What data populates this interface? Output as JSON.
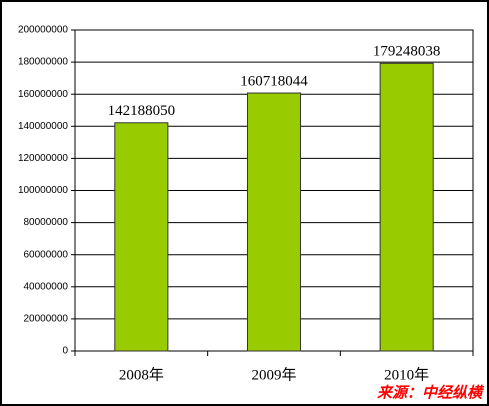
{
  "chart_data": {
    "type": "bar",
    "categories": [
      "2008年",
      "2009年",
      "2010年"
    ],
    "values": [
      142188050,
      160718044,
      179248038
    ],
    "color": "#99cc00",
    "ylim": [
      0,
      200000000
    ],
    "yticks": [
      0,
      20000000,
      40000000,
      60000000,
      80000000,
      100000000,
      120000000,
      140000000,
      160000000,
      180000000,
      200000000
    ],
    "grid": true,
    "source": "来源：中经纵横"
  }
}
